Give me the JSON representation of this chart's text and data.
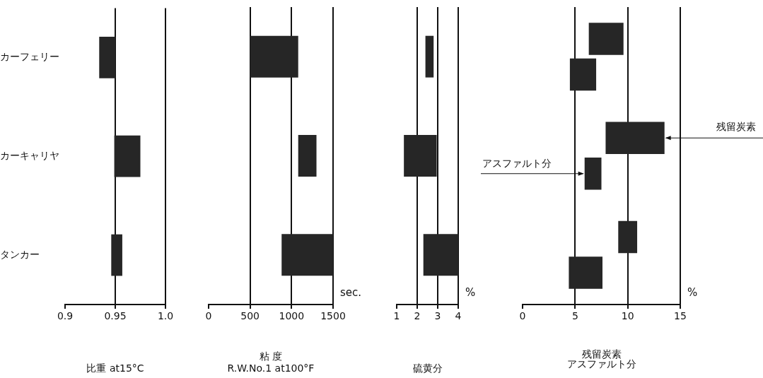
{
  "chart_data": [
    {
      "type": "bar",
      "orientation": "horizontal",
      "categories": [
        "カーフェリー",
        "カーキャリヤ",
        "タンカー"
      ],
      "base": [
        0.934,
        0.949,
        0.946
      ],
      "values": [
        0.016,
        0.026,
        0.011
      ],
      "color": "#262626",
      "xlim": [
        0.9,
        1.0
      ],
      "xticks": [
        0.9,
        0.95,
        {
          "value": 1.0,
          "label": "1.0"
        }
      ],
      "xlabel": "比重 at15°C",
      "grid": "x"
    },
    {
      "type": "bar",
      "orientation": "horizontal",
      "categories": [
        null,
        null,
        null
      ],
      "base": [
        500,
        1080,
        880
      ],
      "values": [
        580,
        220,
        620
      ],
      "color": "#262626",
      "xlim": [
        0,
        1500
      ],
      "xticks": [
        0,
        500,
        1000,
        1500
      ],
      "xlabel": "粘 度\nR.W.No.1 at100°F",
      "annotations": [
        "sec."
      ],
      "grid": "x",
      "tick_labels": "x"
    },
    {
      "type": "bar",
      "orientation": "horizontal",
      "categories": [
        null,
        null,
        null
      ],
      "base": [
        2.4,
        1.35,
        2.3
      ],
      "values": [
        0.4,
        1.6,
        1.7
      ],
      "color": "#262626",
      "xlim": [
        1,
        4
      ],
      "xticks": [
        1,
        2,
        3,
        4
      ],
      "xlabel": "硫黄分",
      "annotations": [
        "%"
      ],
      "grid": "x",
      "tick_labels": "x"
    },
    {
      "type": "bar",
      "orientation": "horizontal",
      "categories": [
        null,
        null,
        null
      ],
      "series": [
        {
          "name": "残留炭素",
          "color": "#262626",
          "base": [
            6.3,
            7.9,
            9.1
          ],
          "values": [
            3.3,
            5.6,
            1.8
          ]
        },
        {
          "name": "アスファルト分",
          "color": "#262626",
          "base": [
            4.5,
            5.9,
            4.4
          ],
          "values": [
            2.5,
            1.6,
            3.2
          ]
        }
      ],
      "xlim": [
        0,
        15
      ],
      "xticks": [
        0,
        5,
        10,
        15
      ],
      "xlabel": "残留炭素",
      "annotations": [
        "%",
        "アスファルト分"
      ],
      "grid": "x",
      "tick_labels": "x"
    }
  ]
}
